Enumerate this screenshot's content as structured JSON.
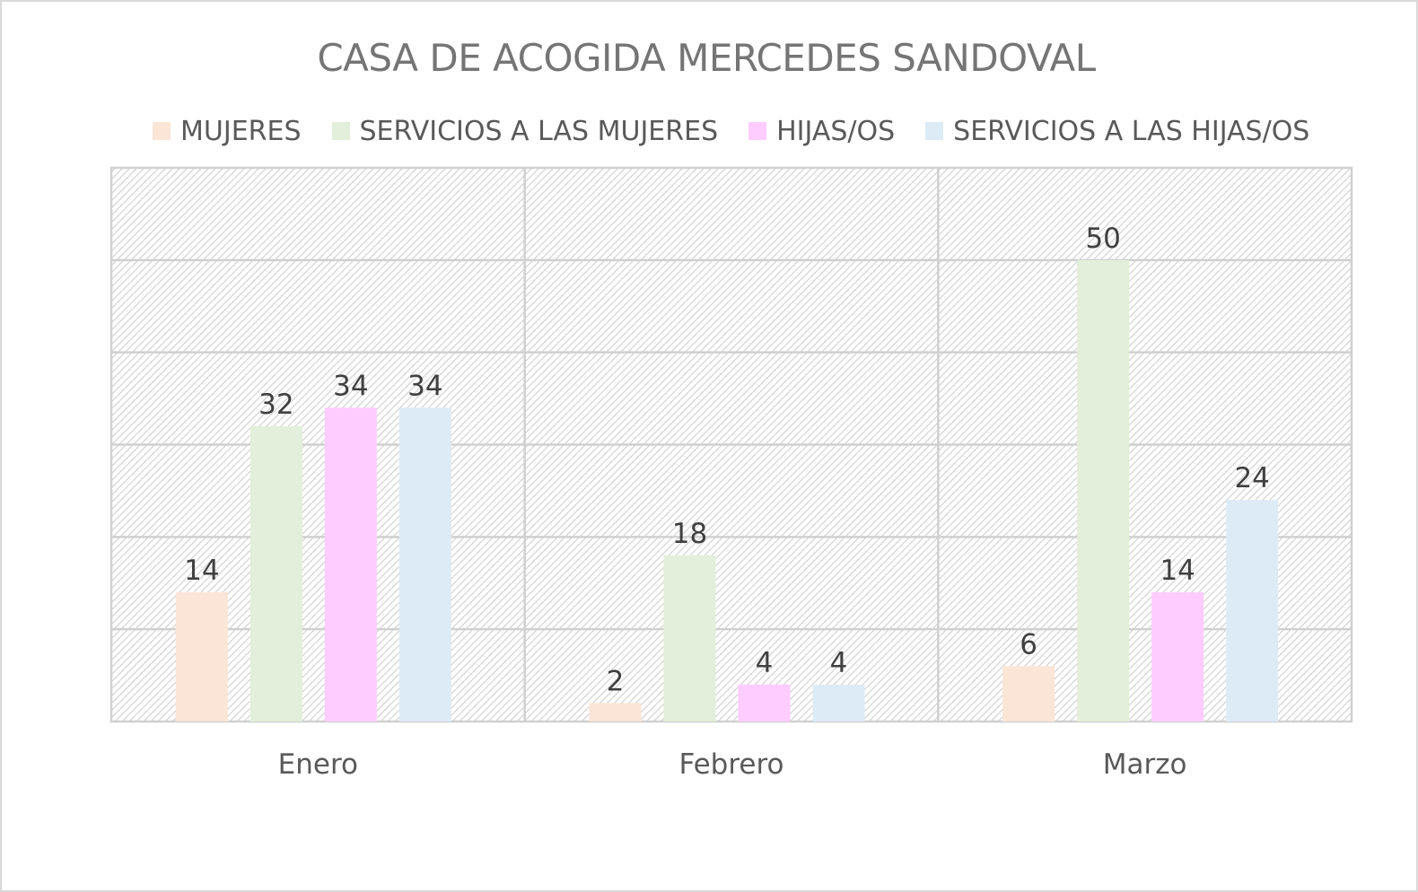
{
  "chart_data": {
    "type": "bar",
    "title": "CASA DE ACOGIDA MERCEDES SANDOVAL",
    "categories": [
      "Enero",
      "Febrero",
      "Marzo"
    ],
    "series": [
      {
        "name": "MUJERES",
        "color": "#fbe5d6",
        "values": [
          14,
          2,
          6
        ]
      },
      {
        "name": "SERVICIOS A LAS MUJERES",
        "color": "#e2efda",
        "values": [
          32,
          18,
          50
        ]
      },
      {
        "name": "HIJAS/OS",
        "color": "#ffccff",
        "values": [
          34,
          4,
          14
        ]
      },
      {
        "name": "SERVICIOS A LAS HIJAS/OS",
        "color": "#ddebf7",
        "values": [
          34,
          4,
          24
        ]
      }
    ],
    "ylim": [
      0,
      60
    ],
    "legend_position": "top",
    "grid": true,
    "data_labels": true
  }
}
